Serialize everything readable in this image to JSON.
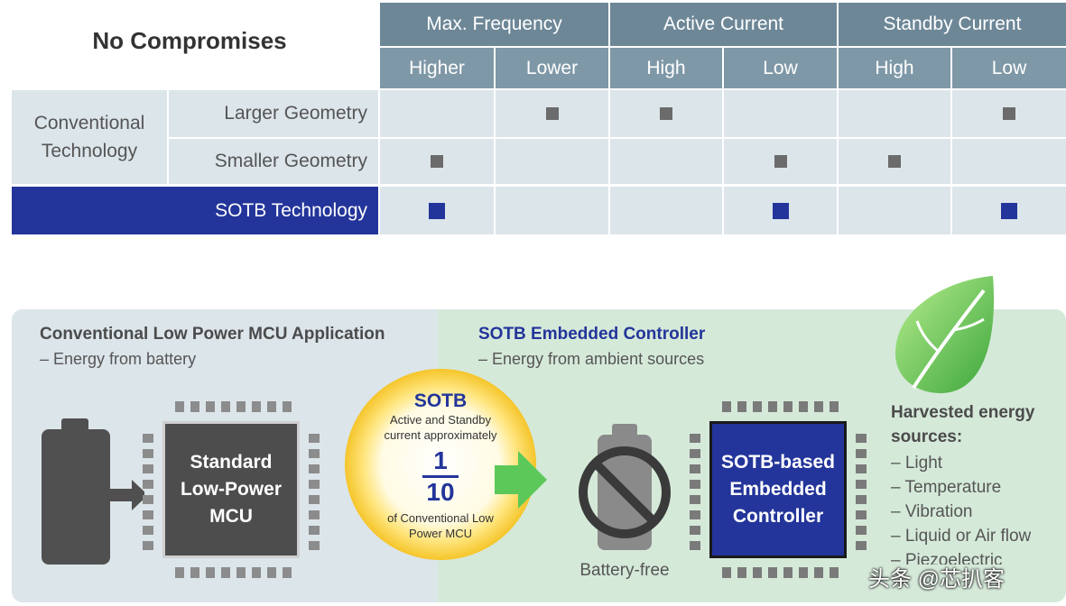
{
  "table": {
    "title": "No Compromises",
    "groups": [
      {
        "label": "Max. Frequency",
        "options": [
          "Higher",
          "Lower"
        ]
      },
      {
        "label": "Active Current",
        "options": [
          "High",
          "Low"
        ]
      },
      {
        "label": "Standby Current",
        "options": [
          "High",
          "Low"
        ]
      }
    ],
    "row_group_label": "Conventional Technology",
    "rows": [
      {
        "label": "Larger Geometry",
        "marks": [
          false,
          true,
          true,
          false,
          false,
          true
        ]
      },
      {
        "label": "Smaller Geometry",
        "marks": [
          true,
          false,
          false,
          true,
          true,
          false
        ]
      },
      {
        "label": "SOTB Technology",
        "marks": [
          true,
          false,
          false,
          true,
          false,
          true
        ]
      }
    ]
  },
  "left_panel": {
    "title": "Conventional Low Power MCU Application",
    "subtitle": "– Energy from battery",
    "chip_label_1": "Standard",
    "chip_label_2": "Low-Power",
    "chip_label_3": "MCU"
  },
  "center_badge": {
    "title": "SOTB",
    "line1": "Active and Standby",
    "line2": "current approximately",
    "numerator": "1",
    "denominator": "10",
    "line3": "of Conventional Low",
    "line4": "Power MCU"
  },
  "right_panel": {
    "title": "SOTB Embedded Controller",
    "subtitle": "– Energy from ambient sources",
    "battery_caption": "Battery-free",
    "chip_label_1": "SOTB-based",
    "chip_label_2": "Embedded",
    "chip_label_3": "Controller",
    "sources_title_1": "Harvested energy",
    "sources_title_2": "sources:",
    "sources": [
      "– Light",
      "– Temperature",
      "– Vibration",
      "– Liquid or Air flow",
      "– Piezoelectric"
    ]
  },
  "watermark": "头条 @芯扒客",
  "colors": {
    "header": "#6d8797",
    "cell": "#dce5ea",
    "sotb_blue": "#23359a",
    "green": "#5cc85a"
  }
}
